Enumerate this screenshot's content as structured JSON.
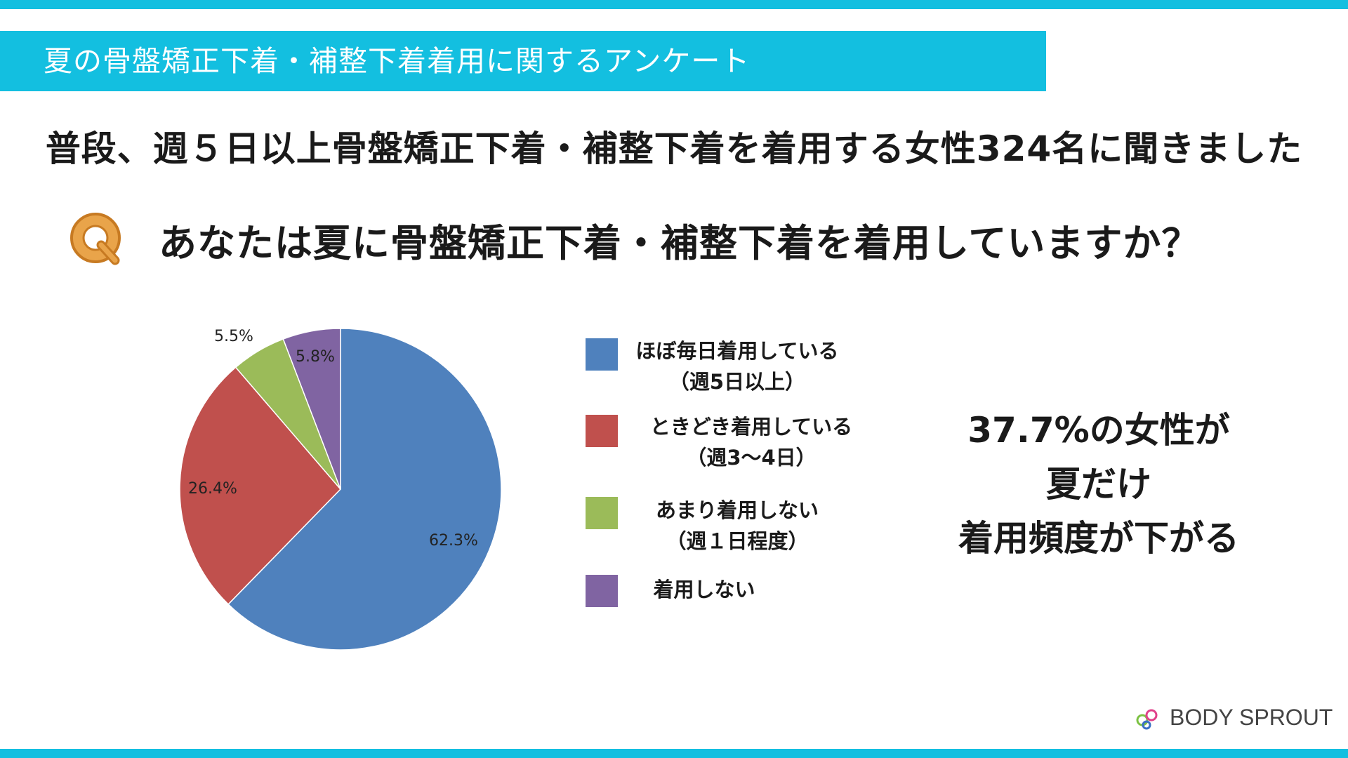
{
  "header": {
    "title": "夏の骨盤矯正下着・補整下着着用に関するアンケート",
    "subtitle": "普段、週５日以上骨盤矯正下着・補整下着を着用する女性324名に聞きました",
    "question": "あなたは夏に骨盤矯正下着・補整下着を着用していますか？",
    "q_icon": "q-badge-icon"
  },
  "chart_data": {
    "type": "pie",
    "start": "12 o'clock, clockwise",
    "slices": [
      {
        "line1": "ほぼ毎日着用している",
        "line2": "（週5日以上）",
        "value": 62.3,
        "label": "62.3%",
        "color": "#4f81bd"
      },
      {
        "line1": "ときどき着用している",
        "line2": "（週3～4日）",
        "value": 26.4,
        "label": "26.4%",
        "color": "#c0504d"
      },
      {
        "line1": "あまり着用しない",
        "line2": "（週１日程度）",
        "value": 5.5,
        "label": "5.5%",
        "color": "#9bbb59"
      },
      {
        "line1": "着用しない",
        "line2": "",
        "value": 5.8,
        "label": "5.8%",
        "color": "#8064a2"
      }
    ]
  },
  "highlight": {
    "line1": "37.7%の女性が",
    "line2": "夏だけ",
    "line3": "着用頻度が下がる"
  },
  "brand": {
    "name": "BODY SPROUT",
    "logo_icon": "body-sprout-logo-icon"
  },
  "colors": {
    "accent": "#13bfe0"
  }
}
